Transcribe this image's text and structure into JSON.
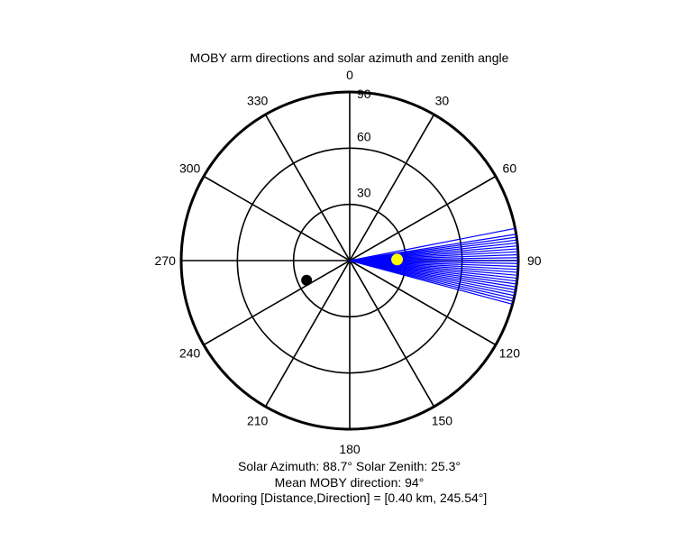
{
  "chart_data": {
    "type": "polar",
    "title": "MOBY arm directions and solar azimuth and zenith angle",
    "orientation": "clockwise-from-north",
    "angle_ticks": [
      "0",
      "30",
      "60",
      "90",
      "120",
      "150",
      "180",
      "210",
      "240",
      "270",
      "300",
      "330"
    ],
    "angle_tick_values": [
      0,
      30,
      60,
      90,
      120,
      150,
      180,
      210,
      240,
      270,
      300,
      330
    ],
    "radius_ticks": [
      "30",
      "60",
      "90"
    ],
    "radius_tick_values": [
      30,
      60,
      90
    ],
    "rlim": [
      0,
      90
    ],
    "grid": true,
    "series": [
      {
        "kind": "arm-directions",
        "color": "#0000ff",
        "radius": 90,
        "directions_deg": [
          79.0,
          81.0,
          82.0,
          83.0,
          84.0,
          85.0,
          86.0,
          87.0,
          88.0,
          89.0,
          90.0,
          91.0,
          92.0,
          93.0,
          94.0,
          95.0,
          96.0,
          97.0,
          98.0,
          99.0,
          100.0,
          101.0,
          102.0,
          103.0,
          104.0,
          105.0
        ]
      },
      {
        "kind": "sun",
        "color": "#ffff00",
        "azimuth_deg": 88.7,
        "zenith_deg": 25.3
      },
      {
        "kind": "mooring",
        "color": "#000000",
        "direction_deg": 245.54,
        "radius": 25.3
      }
    ],
    "annotations": [
      "Solar Azimuth: 88.7°    Solar Zenith: 25.3°",
      "Mean MOBY direction: 94°",
      "Mooring [Distance,Direction] = [0.40 km, 245.54°]"
    ]
  }
}
